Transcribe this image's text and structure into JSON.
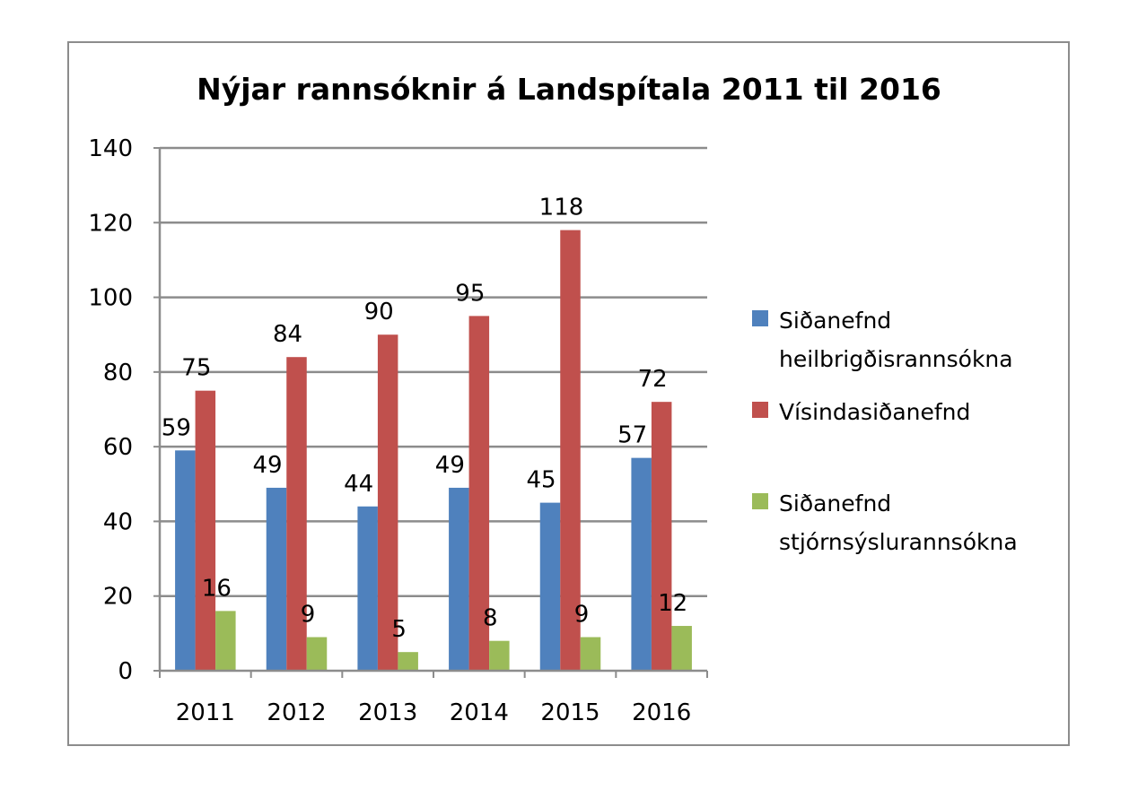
{
  "chart_data": {
    "type": "bar",
    "title": "Nýjar rannsóknir á Landspítala 2011 til 2016",
    "xlabel": "",
    "ylabel": "",
    "categories": [
      "2011",
      "2012",
      "2013",
      "2014",
      "2015",
      "2016"
    ],
    "ylim": [
      0,
      140
    ],
    "yticks": [
      0,
      20,
      40,
      60,
      80,
      100,
      120,
      140
    ],
    "grid": true,
    "legend_position": "right",
    "series": [
      {
        "name": "Siðanefnd heilbrigðisrannsókna",
        "name_lines": [
          "Siðanefnd",
          "heilbrigðisrannsókna"
        ],
        "color": "#4f81bd",
        "values": [
          59,
          49,
          44,
          49,
          45,
          57
        ]
      },
      {
        "name": "Vísindasiðanefnd",
        "name_lines": [
          "Vísindasiðanefnd"
        ],
        "color": "#c0504d",
        "values": [
          75,
          84,
          90,
          95,
          118,
          72
        ]
      },
      {
        "name": "Siðanefnd stjórnsýslurannsókna",
        "name_lines": [
          "Siðanefnd",
          "stjórnsýslurannsókna"
        ],
        "color": "#9bbb59",
        "values": [
          16,
          9,
          5,
          8,
          9,
          12
        ]
      }
    ]
  }
}
